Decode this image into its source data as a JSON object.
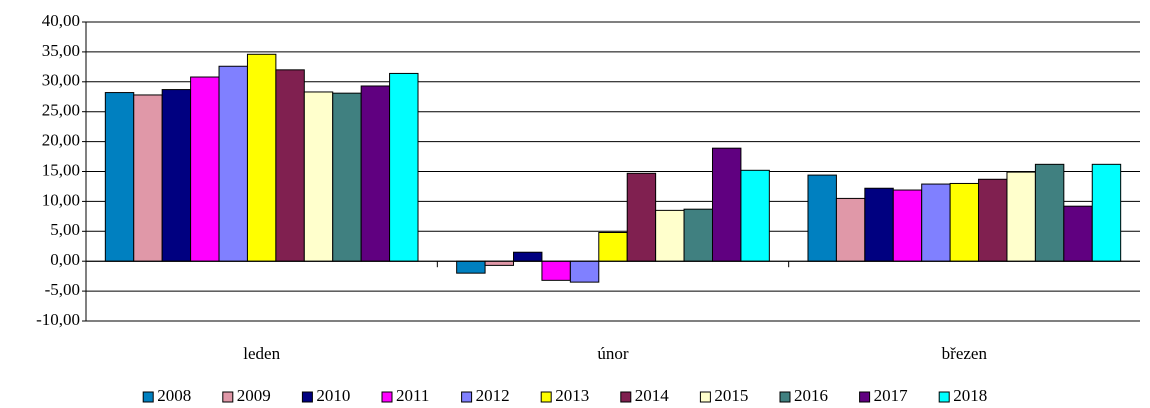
{
  "chart_data": {
    "type": "bar",
    "categories": [
      "leden",
      "únor",
      "březen"
    ],
    "series": [
      {
        "name": "2008",
        "color": "#0080c0",
        "values": [
          28.2,
          -2.0,
          14.4
        ]
      },
      {
        "name": "2009",
        "color": "#e098a8",
        "values": [
          27.8,
          -0.7,
          10.5
        ]
      },
      {
        "name": "2010",
        "color": "#000080",
        "values": [
          28.7,
          1.5,
          12.2
        ]
      },
      {
        "name": "2011",
        "color": "#ff00ff",
        "values": [
          30.8,
          -3.2,
          11.9
        ]
      },
      {
        "name": "2012",
        "color": "#8080ff",
        "values": [
          32.6,
          -3.5,
          12.9
        ]
      },
      {
        "name": "2013",
        "color": "#ffff00",
        "values": [
          34.6,
          4.8,
          13.0
        ]
      },
      {
        "name": "2014",
        "color": "#802050",
        "values": [
          32.0,
          14.7,
          13.7
        ]
      },
      {
        "name": "2015",
        "color": "#ffffcc",
        "values": [
          28.3,
          8.5,
          14.9
        ]
      },
      {
        "name": "2016",
        "color": "#408080",
        "values": [
          28.1,
          8.7,
          16.2
        ]
      },
      {
        "name": "2017",
        "color": "#600080",
        "values": [
          29.3,
          18.9,
          9.2
        ]
      },
      {
        "name": "2018",
        "color": "#00ffff",
        "values": [
          31.4,
          15.2,
          16.2
        ]
      }
    ],
    "ylim": [
      -10,
      40
    ],
    "yticks": [
      {
        "value": -10,
        "label": "-10,00"
      },
      {
        "value": -5,
        "label": "-5,00"
      },
      {
        "value": 0,
        "label": "0,00"
      },
      {
        "value": 5,
        "label": "5,00"
      },
      {
        "value": 10,
        "label": "10,00"
      },
      {
        "value": 15,
        "label": "15,00"
      },
      {
        "value": 20,
        "label": "20,00"
      },
      {
        "value": 25,
        "label": "25,00"
      },
      {
        "value": 30,
        "label": "30,00"
      },
      {
        "value": 35,
        "label": "35,00"
      },
      {
        "value": 40,
        "label": "40,00"
      }
    ],
    "grid": true,
    "legend": "bottom"
  }
}
